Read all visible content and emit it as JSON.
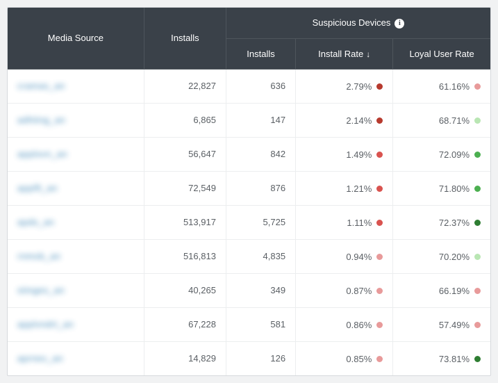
{
  "header": {
    "media_source": "Media Source",
    "installs": "Installs",
    "group": "Suspicious Devices",
    "sub_installs": "Installs",
    "sub_install_rate": "Install Rate",
    "sub_loyal_rate": "Loyal User Rate",
    "sort_indicator": "↓",
    "info_glyph": "i"
  },
  "colors": {
    "dark_red": "#b73a2e",
    "red": "#d9534f",
    "pink": "#e89a9a",
    "light_green": "#b9e6b3",
    "green": "#4caf50",
    "dark_green": "#2e7d32"
  },
  "rows": [
    {
      "source": "cramas_an",
      "installs": "22,827",
      "s_installs": "636",
      "rate": "2.79%",
      "rate_color": "dark_red",
      "loyal": "61.16%",
      "loyal_color": "pink"
    },
    {
      "source": "adhting_an",
      "installs": "6,865",
      "s_installs": "147",
      "rate": "2.14%",
      "rate_color": "dark_red",
      "loyal": "68.71%",
      "loyal_color": "light_green"
    },
    {
      "source": "applovn_an",
      "installs": "56,647",
      "s_installs": "842",
      "rate": "1.49%",
      "rate_color": "red",
      "loyal": "72.09%",
      "loyal_color": "green"
    },
    {
      "source": "applft_an",
      "installs": "72,549",
      "s_installs": "876",
      "rate": "1.21%",
      "rate_color": "red",
      "loyal": "71.80%",
      "loyal_color": "green"
    },
    {
      "source": "apds_an",
      "installs": "513,917",
      "s_installs": "5,725",
      "rate": "1.11%",
      "rate_color": "red",
      "loyal": "72.37%",
      "loyal_color": "dark_green"
    },
    {
      "source": "rnmob_an",
      "installs": "516,813",
      "s_installs": "4,835",
      "rate": "0.94%",
      "rate_color": "pink",
      "loyal": "70.20%",
      "loyal_color": "light_green"
    },
    {
      "source": "stmges_an",
      "installs": "40,265",
      "s_installs": "349",
      "rate": "0.87%",
      "rate_color": "pink",
      "loyal": "66.19%",
      "loyal_color": "pink"
    },
    {
      "source": "applvndrt_an",
      "installs": "67,228",
      "s_installs": "581",
      "rate": "0.86%",
      "rate_color": "pink",
      "loyal": "57.49%",
      "loyal_color": "pink"
    },
    {
      "source": "aprnex_an",
      "installs": "14,829",
      "s_installs": "126",
      "rate": "0.85%",
      "rate_color": "pink",
      "loyal": "73.81%",
      "loyal_color": "dark_green"
    }
  ]
}
